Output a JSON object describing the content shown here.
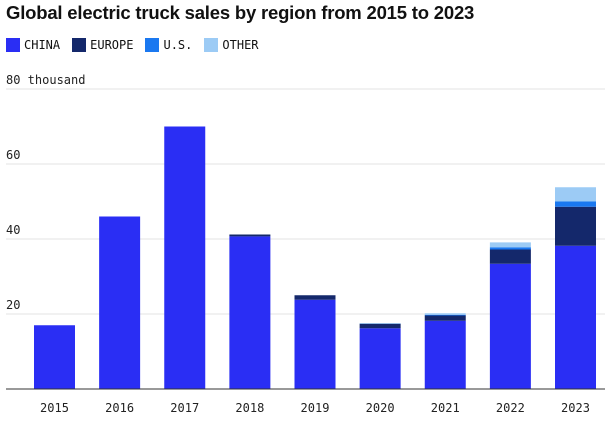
{
  "chart_data": {
    "type": "bar",
    "stacked": true,
    "title": "Global electric truck sales by region from 2015 to 2023",
    "xlabel": "",
    "ylabel": "",
    "y_unit_label": "80 thousand",
    "categories": [
      "2015",
      "2016",
      "2017",
      "2018",
      "2019",
      "2020",
      "2021",
      "2022",
      "2023"
    ],
    "series": [
      {
        "name": "CHINA",
        "color": "#2a2ef4",
        "values": [
          17,
          46,
          70,
          40.7,
          23.8,
          16.2,
          18.2,
          33.4,
          38.2
        ]
      },
      {
        "name": "EUROPE",
        "color": "#14286b",
        "values": [
          0,
          0,
          0,
          0.5,
          1.2,
          1.2,
          1.4,
          3.8,
          10.4
        ]
      },
      {
        "name": "U.S.",
        "color": "#1a78f0",
        "values": [
          0,
          0,
          0,
          0,
          0,
          0,
          0.2,
          0.6,
          1.4
        ]
      },
      {
        "name": "OTHER",
        "color": "#9ccbf5",
        "values": [
          0,
          0,
          0,
          0,
          0,
          0.2,
          0.4,
          1.3,
          3.8
        ]
      }
    ],
    "ylim": [
      0,
      80
    ],
    "yticks": [
      {
        "value": 20,
        "label": "20"
      },
      {
        "value": 40,
        "label": "40"
      },
      {
        "value": 60,
        "label": "60"
      },
      {
        "value": 80,
        "label": "80 thousand"
      }
    ],
    "grid": true,
    "legend": "top-left"
  }
}
